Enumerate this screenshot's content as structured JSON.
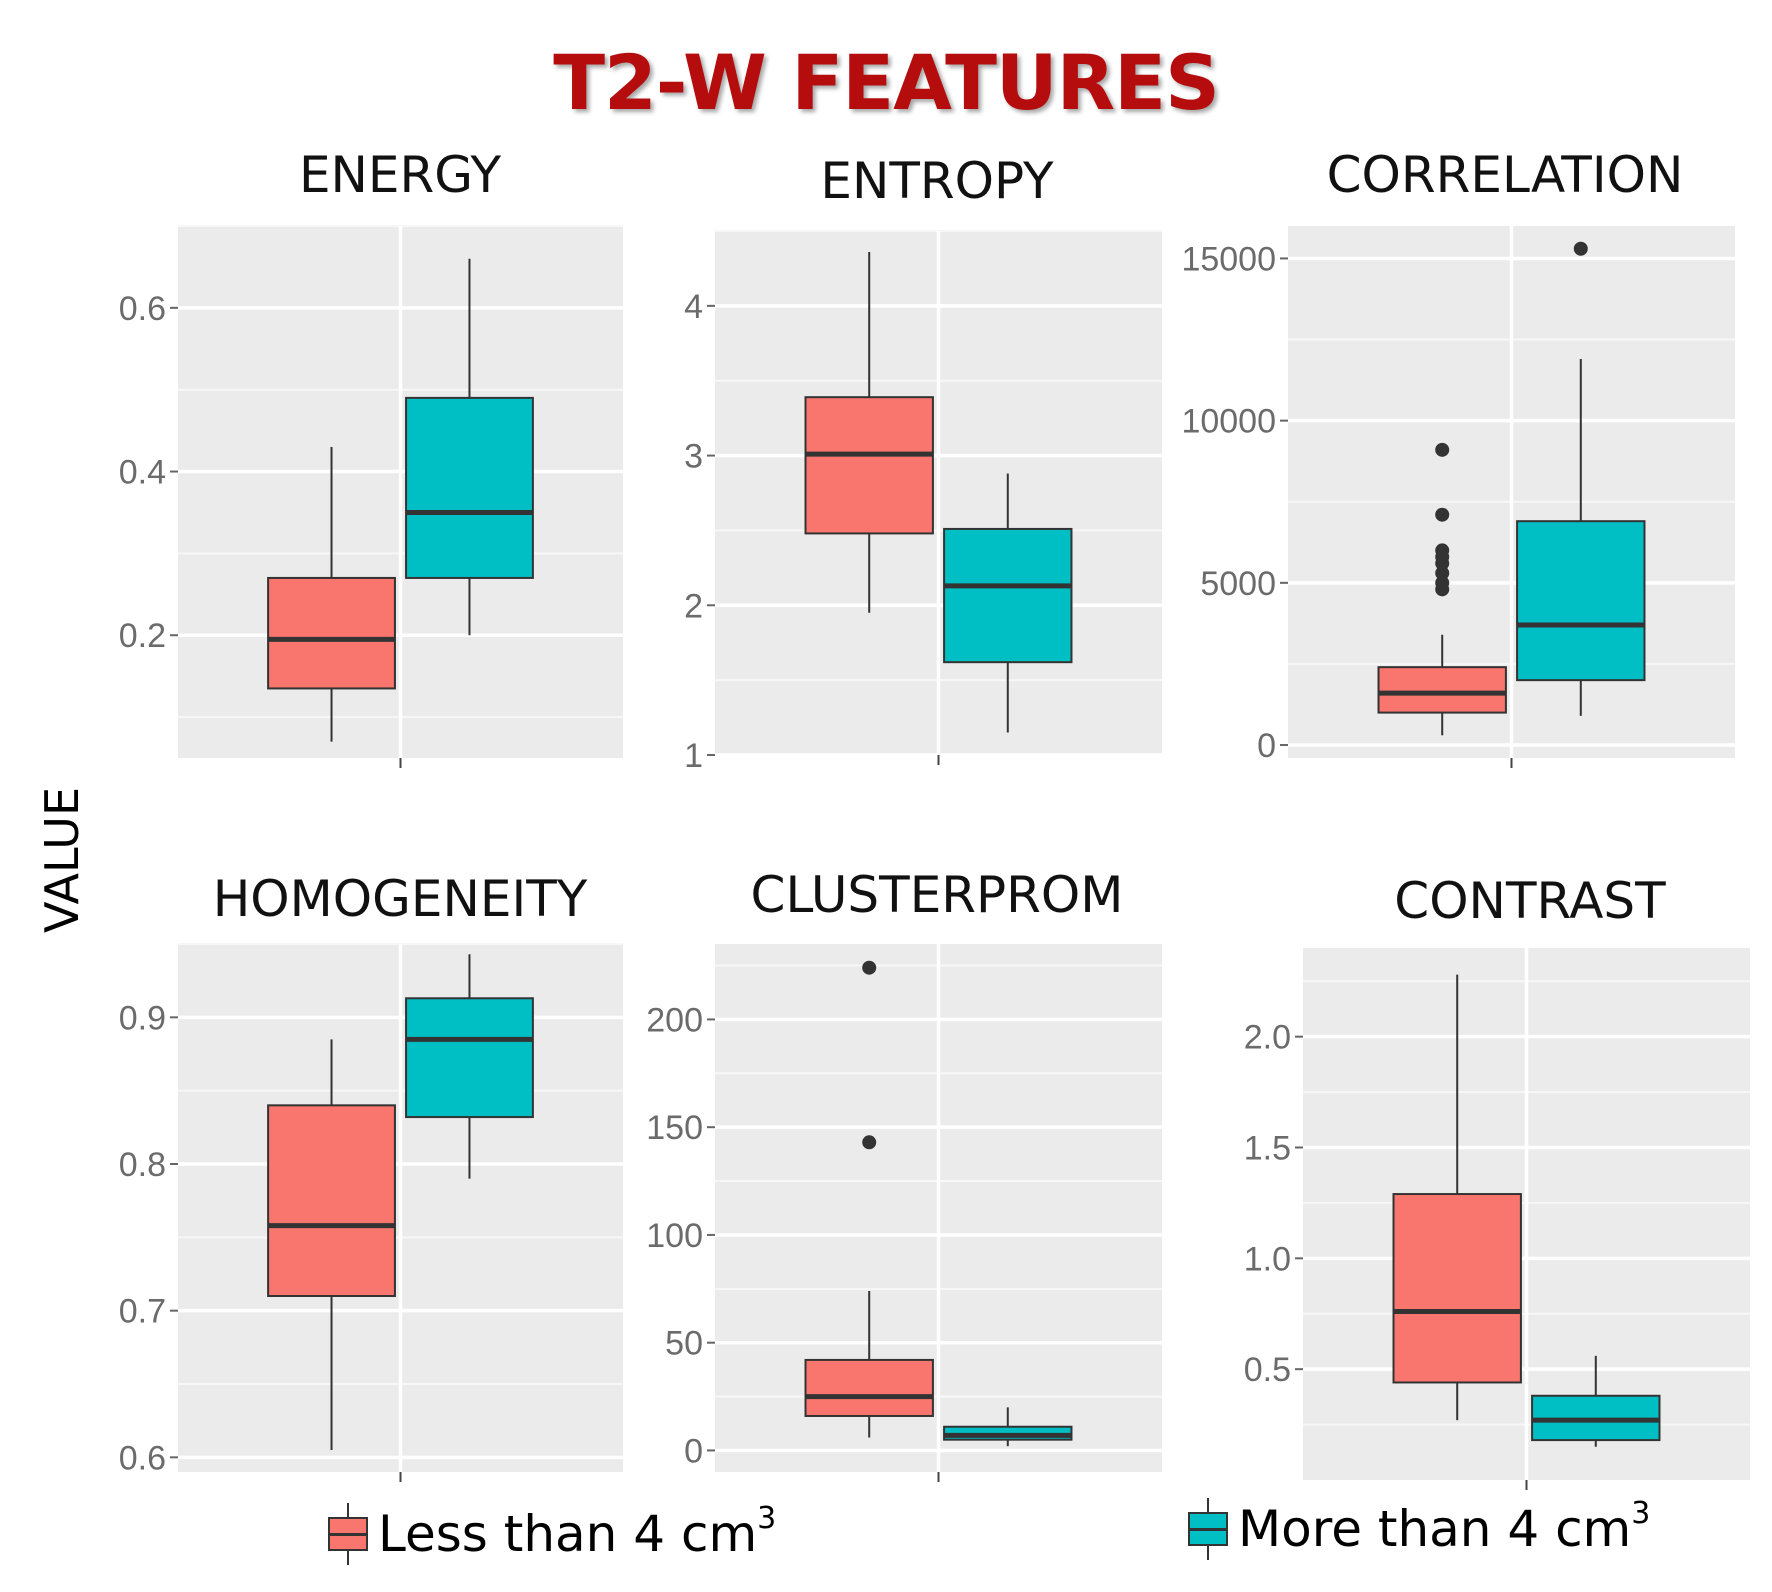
{
  "figure": {
    "title": "T2-W FEATURES",
    "ylabel": "VALUE"
  },
  "legend": {
    "items": [
      {
        "label": "Less than 4 cm",
        "superscript": "3",
        "color": "#f8766d"
      },
      {
        "label": "More than 4 cm",
        "superscript": "3",
        "color": "#00bfc4"
      }
    ]
  },
  "chart_data": [
    {
      "type": "boxplot",
      "title": "ENERGY",
      "xlabel": "",
      "ylabel": "VALUE",
      "ylim": [
        0.05,
        0.7
      ],
      "yticks": [
        0.2,
        0.4,
        0.6
      ],
      "ytick_labels": [
        "0.2",
        "0.4",
        "0.6"
      ],
      "series": [
        {
          "name": "Less than 4 cm3",
          "color": "#f8766d",
          "min": 0.07,
          "q1": 0.135,
          "median": 0.195,
          "q3": 0.27,
          "max": 0.43,
          "outliers": []
        },
        {
          "name": "More than 4 cm3",
          "color": "#00bfc4",
          "min": 0.2,
          "q1": 0.27,
          "median": 0.35,
          "q3": 0.49,
          "max": 0.66,
          "outliers": []
        }
      ]
    },
    {
      "type": "boxplot",
      "title": "ENTROPY",
      "xlabel": "",
      "ylabel": "VALUE",
      "ylim": [
        1.0,
        4.5
      ],
      "yticks": [
        1,
        2,
        3,
        4
      ],
      "ytick_labels": [
        "1",
        "2",
        "3",
        "4"
      ],
      "series": [
        {
          "name": "Less than 4 cm3",
          "color": "#f8766d",
          "min": 1.95,
          "q1": 2.48,
          "median": 3.01,
          "q3": 3.39,
          "max": 4.36,
          "outliers": []
        },
        {
          "name": "More than 4 cm3",
          "color": "#00bfc4",
          "min": 1.15,
          "q1": 1.62,
          "median": 2.13,
          "q3": 2.51,
          "max": 2.88,
          "outliers": []
        }
      ]
    },
    {
      "type": "boxplot",
      "title": "CORRELATION",
      "xlabel": "",
      "ylabel": "VALUE",
      "ylim": [
        -400,
        16000
      ],
      "yticks": [
        0,
        5000,
        10000,
        15000
      ],
      "ytick_labels": [
        "0",
        "5000",
        "10000",
        "15000"
      ],
      "series": [
        {
          "name": "Less than 4 cm3",
          "color": "#f8766d",
          "min": 300,
          "q1": 1000,
          "median": 1600,
          "q3": 2400,
          "max": 3400,
          "outliers": [
            9100,
            7100,
            6000,
            5800,
            5600,
            5300,
            5000,
            4800
          ]
        },
        {
          "name": "More than 4 cm3",
          "color": "#00bfc4",
          "min": 900,
          "q1": 2000,
          "median": 3700,
          "q3": 6900,
          "max": 11900,
          "outliers": [
            15300
          ]
        }
      ]
    },
    {
      "type": "boxplot",
      "title": "HOMOGENEITY",
      "xlabel": "",
      "ylabel": "VALUE",
      "ylim": [
        0.59,
        0.95
      ],
      "yticks": [
        0.6,
        0.7,
        0.8,
        0.9
      ],
      "ytick_labels": [
        "0.6",
        "0.7",
        "0.8",
        "0.9"
      ],
      "series": [
        {
          "name": "Less than 4 cm3",
          "color": "#f8766d",
          "min": 0.605,
          "q1": 0.71,
          "median": 0.758,
          "q3": 0.84,
          "max": 0.885,
          "outliers": []
        },
        {
          "name": "More than 4 cm3",
          "color": "#00bfc4",
          "min": 0.79,
          "q1": 0.832,
          "median": 0.885,
          "q3": 0.913,
          "max": 0.943,
          "outliers": []
        }
      ]
    },
    {
      "type": "boxplot",
      "title": "CLUSTERPROM",
      "xlabel": "",
      "ylabel": "VALUE",
      "ylim": [
        -10,
        235
      ],
      "yticks": [
        0,
        50,
        100,
        150,
        200
      ],
      "ytick_labels": [
        "0",
        "50",
        "100",
        "150",
        "200"
      ],
      "series": [
        {
          "name": "Less than 4 cm3",
          "color": "#f8766d",
          "min": 6,
          "q1": 16,
          "median": 25,
          "q3": 42,
          "max": 74,
          "outliers": [
            224,
            143
          ]
        },
        {
          "name": "More than 4 cm3",
          "color": "#00bfc4",
          "min": 2,
          "q1": 5,
          "median": 7,
          "q3": 11,
          "max": 20,
          "outliers": []
        }
      ]
    },
    {
      "type": "boxplot",
      "title": "CONTRAST",
      "xlabel": "",
      "ylabel": "VALUE",
      "ylim": [
        0.0,
        2.4
      ],
      "yticks": [
        0.5,
        1.0,
        1.5,
        2.0
      ],
      "ytick_labels": [
        "0.5",
        "1.0",
        "1.5",
        "2.0"
      ],
      "series": [
        {
          "name": "Less than 4 cm3",
          "color": "#f8766d",
          "min": 0.27,
          "q1": 0.44,
          "median": 0.76,
          "q3": 1.29,
          "max": 2.28,
          "outliers": []
        },
        {
          "name": "More than 4 cm3",
          "color": "#00bfc4",
          "min": 0.15,
          "q1": 0.18,
          "median": 0.27,
          "q3": 0.38,
          "max": 0.56,
          "outliers": []
        }
      ]
    }
  ]
}
